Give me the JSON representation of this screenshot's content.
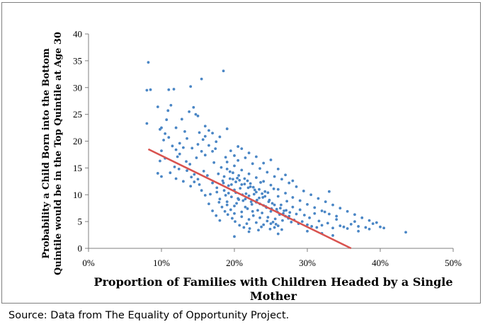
{
  "source_note": "Source: Data from The Equality of Opportunity Project.",
  "colors": {
    "points": "#4a86c5",
    "fit_line": "#d9534f",
    "axis": "#7f7f7f"
  },
  "chart_data": {
    "type": "scatter",
    "xlabel_lines": [
      "Proportion of Families with Children Headed by a Single",
      "Mother"
    ],
    "ylabel_lines": [
      "Probability a Child Born into the Bottom",
      "Quintile would be in the Top Quintile at Age 30"
    ],
    "xlim": [
      0,
      0.5
    ],
    "ylim": [
      0,
      40
    ],
    "x_ticks": [
      0,
      0.1,
      0.2,
      0.3,
      0.4,
      0.5
    ],
    "x_tick_labels": [
      "0%",
      "10%",
      "20%",
      "30%",
      "40%",
      "50%"
    ],
    "y_ticks": [
      0,
      5,
      10,
      15,
      20,
      25,
      30,
      35,
      40
    ],
    "y_tick_labels": [
      "0",
      "5",
      "10",
      "15",
      "20",
      "25",
      "30",
      "35",
      "40"
    ],
    "grid": false,
    "trendline": {
      "x": [
        0.082,
        0.36
      ],
      "y": [
        18.5,
        0.0
      ]
    },
    "series": [
      {
        "points": [
          [
            0.082,
            34.7
          ],
          [
            0.08,
            29.5
          ],
          [
            0.085,
            29.6
          ],
          [
            0.08,
            23.3
          ],
          [
            0.095,
            26.4
          ],
          [
            0.098,
            22.2
          ],
          [
            0.1,
            22.5
          ],
          [
            0.103,
            20.2
          ],
          [
            0.107,
            24.0
          ],
          [
            0.109,
            25.7
          ],
          [
            0.11,
            29.6
          ],
          [
            0.113,
            26.7
          ],
          [
            0.117,
            29.7
          ],
          [
            0.12,
            22.5
          ],
          [
            0.122,
            17.1
          ],
          [
            0.125,
            19.6
          ],
          [
            0.128,
            24.1
          ],
          [
            0.13,
            18.8
          ],
          [
            0.132,
            21.8
          ],
          [
            0.135,
            20.5
          ],
          [
            0.138,
            25.5
          ],
          [
            0.14,
            30.2
          ],
          [
            0.142,
            18.7
          ],
          [
            0.144,
            26.3
          ],
          [
            0.147,
            25.0
          ],
          [
            0.15,
            24.7
          ],
          [
            0.152,
            21.6
          ],
          [
            0.155,
            31.6
          ],
          [
            0.157,
            20.3
          ],
          [
            0.16,
            22.8
          ],
          [
            0.185,
            33.1
          ],
          [
            0.19,
            22.3
          ],
          [
            0.095,
            14.0
          ],
          [
            0.1,
            13.4
          ],
          [
            0.105,
            16.8
          ],
          [
            0.112,
            14.1
          ],
          [
            0.118,
            15.2
          ],
          [
            0.124,
            14.8
          ],
          [
            0.13,
            12.5
          ],
          [
            0.134,
            16.2
          ],
          [
            0.139,
            15.7
          ],
          [
            0.141,
            13.3
          ],
          [
            0.145,
            12.4
          ],
          [
            0.148,
            16.9
          ],
          [
            0.152,
            11.9
          ],
          [
            0.155,
            18.1
          ],
          [
            0.158,
            14.4
          ],
          [
            0.16,
            17.4
          ],
          [
            0.163,
            13.6
          ],
          [
            0.165,
            19.2
          ],
          [
            0.167,
            10.1
          ],
          [
            0.17,
            12.2
          ],
          [
            0.172,
            16.0
          ],
          [
            0.174,
            18.6
          ],
          [
            0.176,
            11.3
          ],
          [
            0.178,
            13.9
          ],
          [
            0.18,
            9.2
          ],
          [
            0.182,
            15.1
          ],
          [
            0.184,
            12.6
          ],
          [
            0.186,
            10.8
          ],
          [
            0.188,
            17.0
          ],
          [
            0.19,
            8.7
          ],
          [
            0.192,
            11.7
          ],
          [
            0.194,
            14.3
          ],
          [
            0.196,
            9.6
          ],
          [
            0.198,
            12.9
          ],
          [
            0.2,
            7.9
          ],
          [
            0.202,
            10.4
          ],
          [
            0.204,
            13.1
          ],
          [
            0.206,
            9.1
          ],
          [
            0.208,
            11.2
          ],
          [
            0.21,
            6.8
          ],
          [
            0.212,
            8.9
          ],
          [
            0.214,
            12.0
          ],
          [
            0.216,
            10.2
          ],
          [
            0.218,
            7.4
          ],
          [
            0.22,
            9.8
          ],
          [
            0.222,
            11.5
          ],
          [
            0.224,
            8.2
          ],
          [
            0.226,
            6.1
          ],
          [
            0.228,
            10.9
          ],
          [
            0.23,
            8.6
          ],
          [
            0.232,
            7.1
          ],
          [
            0.234,
            9.4
          ],
          [
            0.236,
            12.3
          ],
          [
            0.238,
            6.6
          ],
          [
            0.24,
            8.0
          ],
          [
            0.242,
            10.6
          ],
          [
            0.244,
            7.6
          ],
          [
            0.246,
            5.8
          ],
          [
            0.248,
            9.0
          ],
          [
            0.25,
            6.9
          ],
          [
            0.252,
            8.4
          ],
          [
            0.254,
            11.1
          ],
          [
            0.256,
            5.5
          ],
          [
            0.258,
            7.3
          ],
          [
            0.26,
            9.7
          ],
          [
            0.262,
            6.3
          ],
          [
            0.264,
            8.1
          ],
          [
            0.266,
            5.2
          ],
          [
            0.268,
            7.0
          ],
          [
            0.27,
            6.0
          ],
          [
            0.272,
            8.8
          ],
          [
            0.274,
            5.6
          ],
          [
            0.276,
            6.7
          ],
          [
            0.278,
            4.9
          ],
          [
            0.28,
            7.7
          ],
          [
            0.282,
            5.3
          ],
          [
            0.285,
            6.4
          ],
          [
            0.288,
            4.6
          ],
          [
            0.29,
            7.2
          ],
          [
            0.293,
            5.0
          ],
          [
            0.296,
            6.2
          ],
          [
            0.3,
            4.4
          ],
          [
            0.303,
            5.7
          ],
          [
            0.306,
            4.1
          ],
          [
            0.31,
            6.5
          ],
          [
            0.313,
            3.9
          ],
          [
            0.316,
            5.1
          ],
          [
            0.32,
            4.3
          ],
          [
            0.324,
            6.8
          ],
          [
            0.328,
            4.7
          ],
          [
            0.33,
            10.6
          ],
          [
            0.335,
            3.8
          ],
          [
            0.34,
            5.4
          ],
          [
            0.345,
            4.2
          ],
          [
            0.35,
            4.0
          ],
          [
            0.355,
            3.7
          ],
          [
            0.36,
            4.5
          ],
          [
            0.365,
            5.0
          ],
          [
            0.37,
            4.1
          ],
          [
            0.38,
            3.9
          ],
          [
            0.39,
            4.6
          ],
          [
            0.4,
            4.0
          ],
          [
            0.405,
            3.8
          ],
          [
            0.435,
            3.0
          ],
          [
            0.17,
            21.5
          ],
          [
            0.175,
            19.9
          ],
          [
            0.18,
            20.8
          ],
          [
            0.16,
            20.9
          ],
          [
            0.15,
            19.4
          ],
          [
            0.165,
            22.0
          ],
          [
            0.17,
            18.1
          ],
          [
            0.205,
            19.0
          ],
          [
            0.21,
            18.6
          ],
          [
            0.22,
            17.8
          ],
          [
            0.23,
            17.1
          ],
          [
            0.24,
            15.9
          ],
          [
            0.25,
            16.5
          ],
          [
            0.26,
            14.8
          ],
          [
            0.27,
            13.7
          ],
          [
            0.28,
            12.6
          ],
          [
            0.19,
            16.1
          ],
          [
            0.2,
            15.4
          ],
          [
            0.21,
            14.6
          ],
          [
            0.22,
            13.9
          ],
          [
            0.23,
            13.2
          ],
          [
            0.24,
            12.5
          ],
          [
            0.25,
            11.8
          ],
          [
            0.26,
            11.0
          ],
          [
            0.27,
            10.3
          ],
          [
            0.28,
            9.5
          ],
          [
            0.29,
            8.9
          ],
          [
            0.3,
            8.2
          ],
          [
            0.31,
            7.6
          ],
          [
            0.32,
            7.0
          ],
          [
            0.33,
            6.4
          ],
          [
            0.34,
            6.0
          ],
          [
            0.19,
            8.1
          ],
          [
            0.195,
            7.2
          ],
          [
            0.2,
            6.5
          ],
          [
            0.205,
            9.3
          ],
          [
            0.21,
            5.9
          ],
          [
            0.215,
            7.7
          ],
          [
            0.22,
            5.4
          ],
          [
            0.225,
            6.9
          ],
          [
            0.23,
            4.8
          ],
          [
            0.235,
            5.7
          ],
          [
            0.24,
            4.4
          ],
          [
            0.245,
            5.1
          ],
          [
            0.25,
            4.6
          ],
          [
            0.255,
            3.9
          ],
          [
            0.26,
            4.2
          ],
          [
            0.265,
            3.5
          ],
          [
            0.2,
            2.2
          ],
          [
            0.22,
            3.1
          ],
          [
            0.26,
            2.7
          ],
          [
            0.3,
            3.2
          ],
          [
            0.32,
            2.8
          ],
          [
            0.335,
            2.4
          ],
          [
            0.18,
            5.2
          ],
          [
            0.175,
            6.1
          ],
          [
            0.17,
            7.0
          ],
          [
            0.165,
            8.3
          ],
          [
            0.16,
            9.9
          ],
          [
            0.155,
            10.8
          ],
          [
            0.15,
            12.9
          ],
          [
            0.145,
            13.8
          ],
          [
            0.14,
            11.6
          ],
          [
            0.135,
            14.5
          ],
          [
            0.125,
            17.6
          ],
          [
            0.12,
            18.4
          ],
          [
            0.115,
            19.1
          ],
          [
            0.11,
            20.7
          ],
          [
            0.105,
            21.4
          ],
          [
            0.1,
            18.2
          ],
          [
            0.098,
            16.3
          ],
          [
            0.12,
            13.0
          ],
          [
            0.185,
            12.2
          ],
          [
            0.188,
            9.9
          ],
          [
            0.192,
            10.3
          ],
          [
            0.196,
            11.9
          ],
          [
            0.2,
            10.9
          ],
          [
            0.203,
            8.4
          ],
          [
            0.207,
            12.7
          ],
          [
            0.211,
            10.0
          ],
          [
            0.215,
            9.2
          ],
          [
            0.219,
            11.3
          ],
          [
            0.223,
            8.7
          ],
          [
            0.227,
            10.1
          ],
          [
            0.231,
            9.0
          ],
          [
            0.235,
            8.3
          ],
          [
            0.239,
            9.5
          ],
          [
            0.243,
            7.8
          ],
          [
            0.247,
            8.7
          ],
          [
            0.251,
            7.4
          ],
          [
            0.255,
            8.1
          ],
          [
            0.259,
            6.8
          ],
          [
            0.263,
            7.5
          ],
          [
            0.267,
            6.5
          ],
          [
            0.271,
            7.1
          ],
          [
            0.275,
            6.0
          ],
          [
            0.186,
            13.4
          ],
          [
            0.19,
            14.8
          ],
          [
            0.194,
            13.0
          ],
          [
            0.198,
            14.1
          ],
          [
            0.202,
            12.4
          ],
          [
            0.206,
            13.6
          ],
          [
            0.21,
            11.9
          ],
          [
            0.214,
            13.0
          ],
          [
            0.218,
            12.6
          ],
          [
            0.222,
            12.1
          ],
          [
            0.226,
            11.4
          ],
          [
            0.23,
            10.5
          ],
          [
            0.234,
            11.0
          ],
          [
            0.238,
            10.2
          ],
          [
            0.242,
            9.7
          ],
          [
            0.246,
            10.4
          ],
          [
            0.2,
            17.3
          ],
          [
            0.205,
            16.4
          ],
          [
            0.195,
            18.2
          ],
          [
            0.215,
            16.9
          ],
          [
            0.225,
            15.8
          ],
          [
            0.235,
            14.9
          ],
          [
            0.245,
            14.2
          ],
          [
            0.255,
            13.4
          ],
          [
            0.265,
            12.9
          ],
          [
            0.275,
            12.2
          ],
          [
            0.285,
            11.5
          ],
          [
            0.295,
            10.7
          ],
          [
            0.305,
            10.0
          ],
          [
            0.315,
            9.3
          ],
          [
            0.325,
            8.7
          ],
          [
            0.335,
            8.1
          ],
          [
            0.345,
            7.5
          ],
          [
            0.355,
            6.9
          ],
          [
            0.365,
            6.3
          ],
          [
            0.375,
            5.7
          ],
          [
            0.385,
            5.2
          ],
          [
            0.395,
            4.8
          ],
          [
            0.385,
            3.6
          ],
          [
            0.37,
            3.2
          ],
          [
            0.176,
            10.5
          ],
          [
            0.179,
            8.6
          ],
          [
            0.183,
            7.7
          ],
          [
            0.187,
            6.9
          ],
          [
            0.191,
            6.3
          ],
          [
            0.197,
            5.6
          ],
          [
            0.201,
            5.0
          ],
          [
            0.207,
            4.3
          ],
          [
            0.213,
            3.9
          ],
          [
            0.217,
            4.6
          ],
          [
            0.221,
            3.7
          ],
          [
            0.233,
            3.4
          ],
          [
            0.237,
            4.0
          ],
          [
            0.249,
            3.6
          ],
          [
            0.253,
            4.9
          ],
          [
            0.257,
            4.5
          ]
        ]
      }
    ]
  }
}
